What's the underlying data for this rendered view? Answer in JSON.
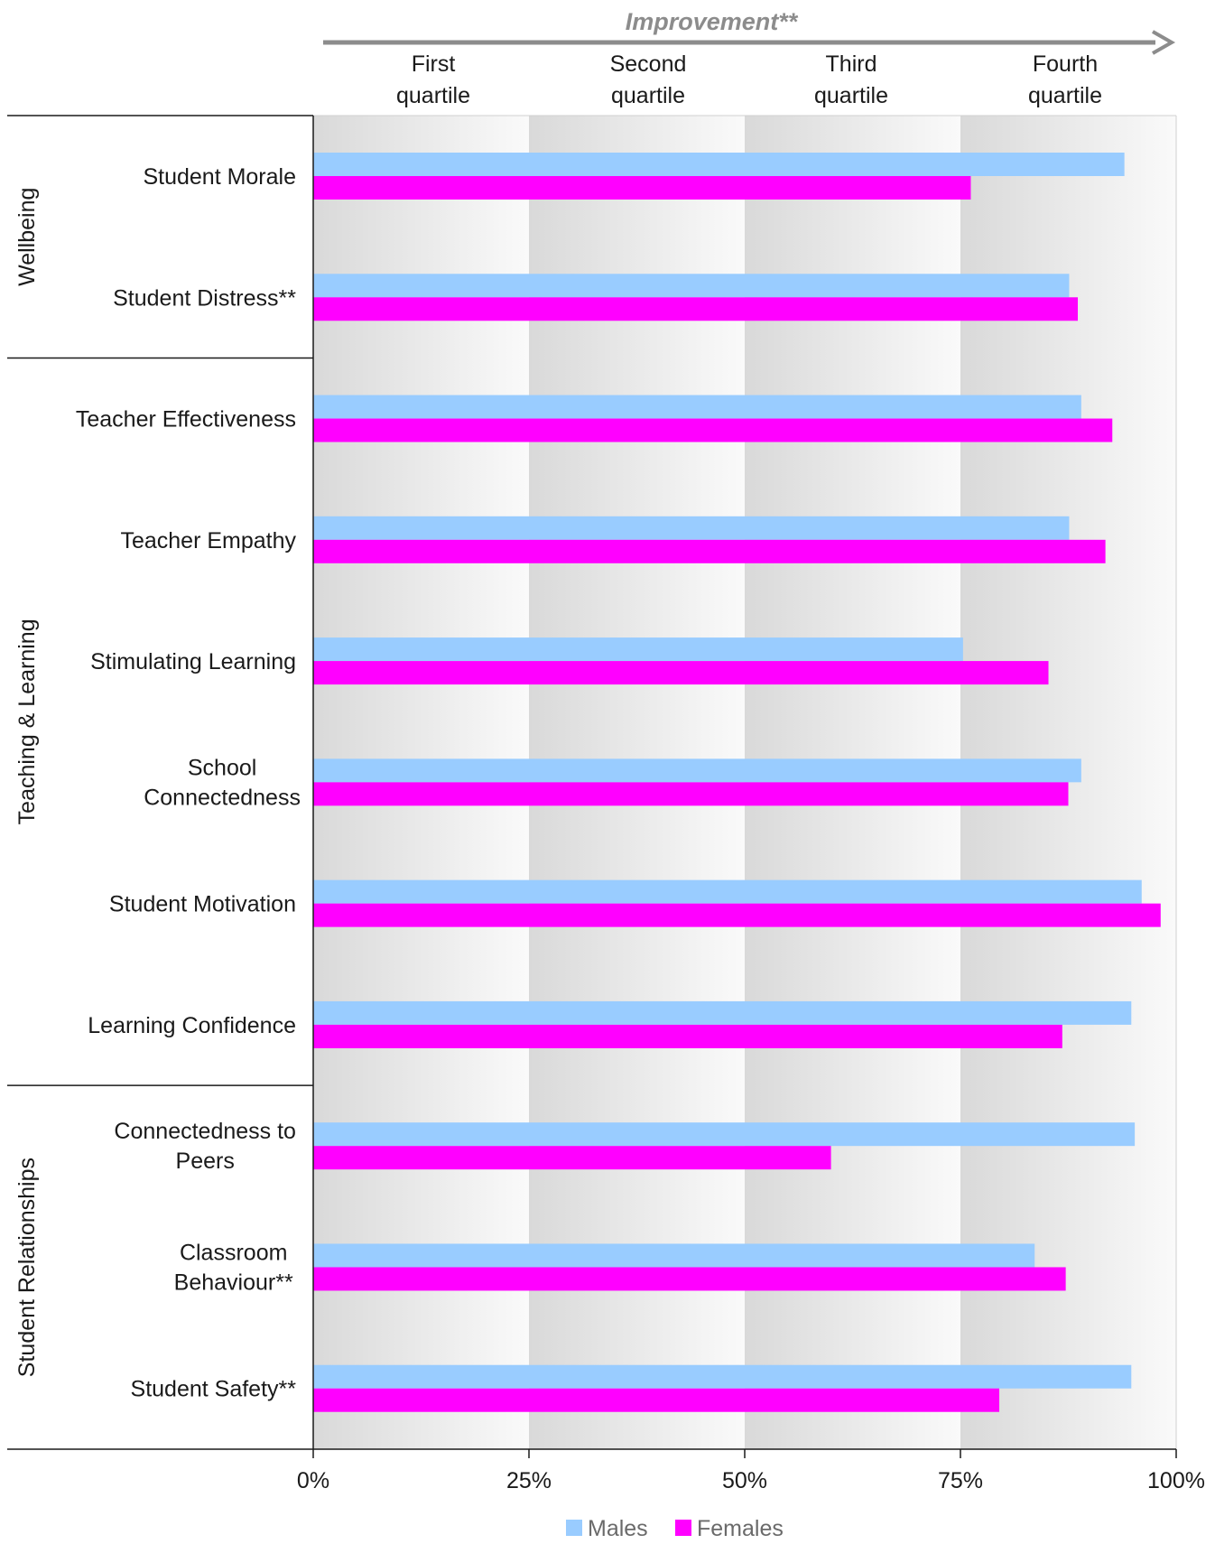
{
  "chart_data": {
    "type": "bar",
    "orientation": "horizontal",
    "header": {
      "improvement_label": "Improvement**",
      "quartiles": [
        {
          "line1": "First",
          "line2": "quartile"
        },
        {
          "line1": "Second",
          "line2": "quartile"
        },
        {
          "line1": "Third",
          "line2": "quartile"
        },
        {
          "line1": "Fourth",
          "line2": "quartile"
        }
      ]
    },
    "groups": [
      {
        "name": "Wellbeing",
        "count": 2
      },
      {
        "name": "Teaching & Learning",
        "count": 6
      },
      {
        "name": "Student Relationships",
        "count": 3
      }
    ],
    "categories": [
      [
        "Student Morale"
      ],
      [
        "Student Distress**"
      ],
      [
        "Teacher Effectiveness"
      ],
      [
        "Teacher Empathy"
      ],
      [
        "Stimulating Learning"
      ],
      [
        "School",
        "Connectedness"
      ],
      [
        "Student Motivation"
      ],
      [
        "Learning Confidence"
      ],
      [
        "Connectedness to",
        "Peers"
      ],
      [
        "Classroom",
        "Behaviour**"
      ],
      [
        "Student Safety**"
      ]
    ],
    "series": [
      {
        "name": "Males",
        "color": "#99ccff",
        "values": [
          94,
          87.6,
          89,
          87.6,
          75.3,
          89,
          96,
          94.8,
          95.2,
          83.6,
          94.8
        ]
      },
      {
        "name": "Females",
        "color": "#ff00ff",
        "values": [
          76.2,
          88.6,
          92.6,
          91.8,
          85.2,
          87.5,
          98.2,
          86.8,
          60,
          87.2,
          79.5
        ]
      }
    ],
    "xlim": [
      0,
      100
    ],
    "ticks": [
      {
        "value": 0,
        "label": "0%"
      },
      {
        "value": 25,
        "label": "25%"
      },
      {
        "value": 50,
        "label": "50%"
      },
      {
        "value": 75,
        "label": "75%"
      },
      {
        "value": 100,
        "label": "100%"
      }
    ],
    "legend_position": "bottom-center",
    "colors": {
      "males": "#99ccff",
      "females": "#ff00ff",
      "arrow": "#8c8c8c"
    }
  }
}
